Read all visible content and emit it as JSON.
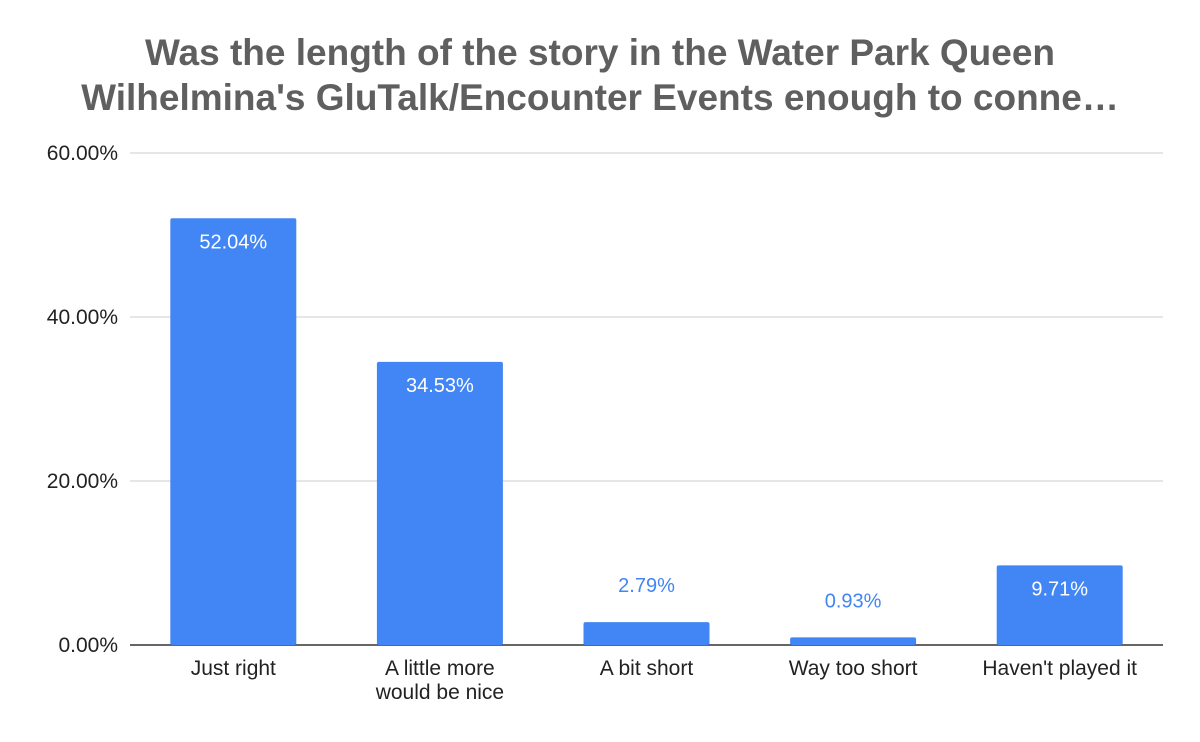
{
  "chart_data": {
    "type": "bar",
    "title": "Was the length of the story in the Water Park Queen Wilhelmina's GluTalk/Encounter Events enough to conne…",
    "title_lines": [
      "Was the length of the story in the Water Park Queen",
      "Wilhelmina's GluTalk/Encounter Events enough to conne…"
    ],
    "categories": [
      [
        "Just right"
      ],
      [
        "A little more",
        "would be nice"
      ],
      [
        "A bit short"
      ],
      [
        "Way too short"
      ],
      [
        "Haven't played it"
      ]
    ],
    "values": [
      52.04,
      34.53,
      2.79,
      0.93,
      9.71
    ],
    "data_labels": [
      "52.04%",
      "34.53%",
      "2.79%",
      "0.93%",
      "9.71%"
    ],
    "ylim": [
      0,
      60
    ],
    "yticks": [
      0,
      20,
      40,
      60
    ],
    "ytick_labels": [
      "0.00%",
      "20.00%",
      "40.00%",
      "60.00%"
    ],
    "xlabel": "",
    "ylabel": "",
    "grid": true,
    "legend": "none",
    "colors": {
      "bar": "#4285f4",
      "label_inside": "#ffffff",
      "label_outside": "#4285f4",
      "grid": "#cccccc",
      "axis": "#333333",
      "title": "#5f5f5f",
      "text": "#222222"
    }
  }
}
